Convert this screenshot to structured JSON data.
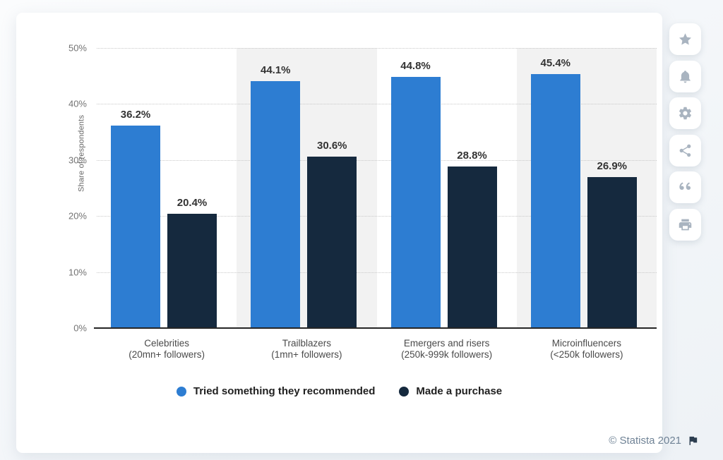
{
  "chart_data": {
    "type": "bar",
    "title": "",
    "ylabel": "Share of respondents",
    "ylim": [
      0,
      50
    ],
    "ytick_step": 10,
    "yticks": [
      "0%",
      "10%",
      "20%",
      "30%",
      "40%",
      "50%"
    ],
    "grid": "horizontal-dotted",
    "legend_position": "bottom",
    "value_suffix": "%",
    "categories": [
      {
        "label": "Celebrities",
        "sublabel": "(20mn+ followers)"
      },
      {
        "label": "Trailblazers",
        "sublabel": "(1mn+ followers)"
      },
      {
        "label": "Emergers and risers",
        "sublabel": "(250k-999k followers)"
      },
      {
        "label": "Microinfluencers",
        "sublabel": "(<250k followers)"
      }
    ],
    "series": [
      {
        "name": "Tried something they recommended",
        "color": "#2d7dd2",
        "values": [
          36.2,
          44.1,
          44.8,
          45.4
        ]
      },
      {
        "name": "Made a purchase",
        "color": "#15293e",
        "values": [
          20.4,
          30.6,
          28.8,
          26.9
        ]
      }
    ],
    "band_colors": [
      "#ffffff",
      "#f2f2f2"
    ]
  },
  "toolbar": {
    "buttons": [
      {
        "icon": "star-icon",
        "action": "favorite"
      },
      {
        "icon": "bell-icon",
        "action": "alerts"
      },
      {
        "icon": "gear-icon",
        "action": "settings"
      },
      {
        "icon": "share-icon",
        "action": "share"
      },
      {
        "icon": "quote-icon",
        "action": "cite"
      },
      {
        "icon": "printer-icon",
        "action": "print"
      }
    ]
  },
  "footer": {
    "credit": "© Statista 2021",
    "flag_icon": "flag-icon"
  },
  "colors": {
    "page_bg": "#f3f6f9",
    "card_bg": "#ffffff",
    "grid_line": "#c9c9c9",
    "axis_line": "#262626",
    "tick_text": "#737373",
    "value_label_text": "#333333",
    "category_text": "#4a4a4a",
    "legend_text": "#1f1f1f",
    "icon_color": "#a9b4c0",
    "credit_text": "#708396",
    "flag_color": "#2c3e50",
    "band_alt": "#f2f2f2"
  }
}
